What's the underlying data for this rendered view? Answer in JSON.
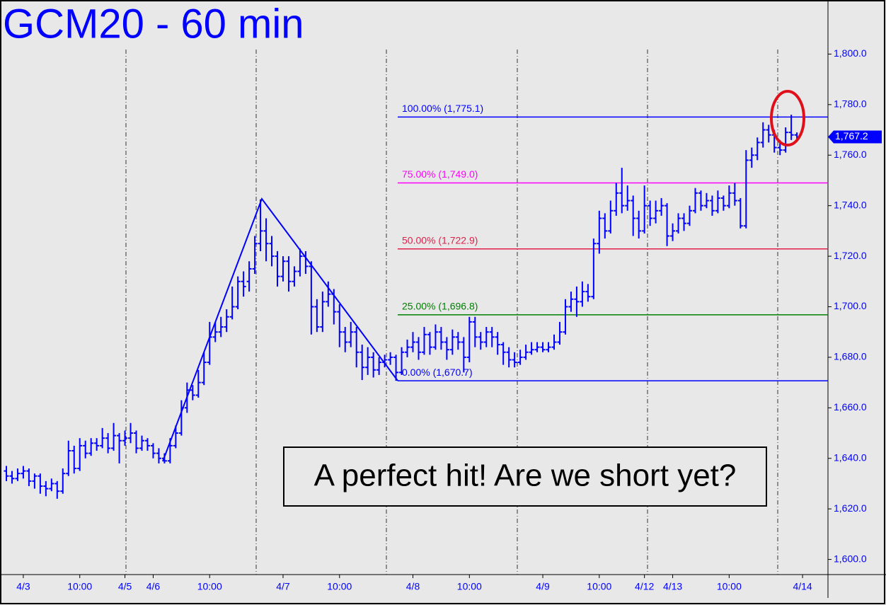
{
  "chart_data": {
    "type": "ohlc",
    "title": "GCM20 - 60 min",
    "color": "#0000ff",
    "categories": [
      null,
      null,
      null,
      "4/3",
      null,
      null,
      null,
      null,
      null,
      null,
      null,
      null,
      null,
      "10:00",
      null,
      null,
      null,
      null,
      null,
      null,
      null,
      "4/5",
      null,
      null,
      null,
      null,
      "4/6",
      null,
      null,
      null,
      null,
      null,
      null,
      null,
      null,
      null,
      "10:00",
      null,
      null,
      null,
      null,
      null,
      null,
      null,
      null,
      null,
      null,
      null,
      null,
      "4/7",
      null,
      null,
      null,
      null,
      null,
      null,
      null,
      null,
      null,
      "10:00",
      null,
      null,
      null,
      null,
      null,
      null,
      null,
      null,
      null,
      null,
      null,
      null,
      "4/8",
      null,
      null,
      null,
      null,
      null,
      null,
      null,
      null,
      null,
      "10:00",
      null,
      null,
      null,
      null,
      null,
      null,
      null,
      null,
      null,
      null,
      null,
      null,
      "4/9",
      null,
      null,
      null,
      null,
      null,
      null,
      null,
      null,
      null,
      "10:00",
      null,
      null,
      null,
      null,
      null,
      null,
      null,
      "4/12",
      null,
      null,
      null,
      null,
      "4/13",
      null,
      null,
      null,
      null,
      null,
      null,
      null,
      null,
      null,
      "10:00",
      null,
      null,
      null,
      null,
      null,
      null,
      null,
      null,
      null,
      null,
      null,
      null,
      "4/14",
      null,
      null,
      null,
      null
    ],
    "ohlc": [
      [
        1635,
        1637,
        1631,
        1633
      ],
      [
        1633,
        1635,
        1630,
        1632
      ],
      [
        1632,
        1636,
        1631,
        1634
      ],
      [
        1634,
        1637,
        1632,
        1635
      ],
      [
        1635,
        1636,
        1629,
        1631
      ],
      [
        1631,
        1634,
        1628,
        1633
      ],
      [
        1633,
        1634,
        1626,
        1629
      ],
      [
        1629,
        1631,
        1625,
        1628
      ],
      [
        1628,
        1632,
        1627,
        1630
      ],
      [
        1630,
        1631,
        1624,
        1627
      ],
      [
        1627,
        1636,
        1626,
        1634
      ],
      [
        1634,
        1647,
        1633,
        1643
      ],
      [
        1643,
        1645,
        1634,
        1636
      ],
      [
        1636,
        1648,
        1635,
        1645
      ],
      [
        1645,
        1647,
        1640,
        1642
      ],
      [
        1642,
        1648,
        1641,
        1646
      ],
      [
        1646,
        1648,
        1643,
        1645
      ],
      [
        1645,
        1652,
        1644,
        1648
      ],
      [
        1648,
        1650,
        1642,
        1644
      ],
      [
        1644,
        1654,
        1643,
        1649
      ],
      [
        1649,
        1650,
        1638,
        1647
      ],
      [
        1647,
        1651,
        1645,
        1648
      ],
      [
        1648,
        1654,
        1646,
        1650
      ],
      [
        1650,
        1651,
        1642,
        1644
      ],
      [
        1644,
        1649,
        1643,
        1647
      ],
      [
        1647,
        1648,
        1643,
        1645
      ],
      [
        1645,
        1646,
        1640,
        1642
      ],
      [
        1642,
        1644,
        1638,
        1640
      ],
      [
        1640,
        1642,
        1638,
        1639
      ],
      [
        1639,
        1648,
        1638,
        1645
      ],
      [
        1645,
        1653,
        1644,
        1650
      ],
      [
        1650,
        1663,
        1649,
        1660
      ],
      [
        1660,
        1670,
        1658,
        1667
      ],
      [
        1667,
        1669,
        1663,
        1665
      ],
      [
        1665,
        1675,
        1664,
        1670
      ],
      [
        1670,
        1682,
        1669,
        1678
      ],
      [
        1678,
        1694,
        1677,
        1688
      ],
      [
        1688,
        1694,
        1686,
        1690
      ],
      [
        1690,
        1696,
        1688,
        1692
      ],
      [
        1692,
        1699,
        1690,
        1696
      ],
      [
        1696,
        1708,
        1695,
        1700
      ],
      [
        1700,
        1712,
        1699,
        1710
      ],
      [
        1710,
        1714,
        1704,
        1708
      ],
      [
        1710,
        1718,
        1706,
        1715
      ],
      [
        1715,
        1728,
        1713,
        1725
      ],
      [
        1725,
        1742.5,
        1722,
        1730
      ],
      [
        1730,
        1735,
        1718,
        1725
      ],
      [
        1725,
        1728,
        1716,
        1720
      ],
      [
        1720,
        1722,
        1708,
        1712
      ],
      [
        1712,
        1720,
        1710,
        1718
      ],
      [
        1718,
        1720,
        1706,
        1710
      ],
      [
        1710,
        1716,
        1708,
        1714
      ],
      [
        1714,
        1723,
        1712,
        1720
      ],
      [
        1720,
        1722,
        1713,
        1716
      ],
      [
        1716,
        1718,
        1689,
        1700
      ],
      [
        1700,
        1703,
        1690,
        1692
      ],
      [
        1692,
        1706,
        1690,
        1702
      ],
      [
        1702,
        1710,
        1700,
        1705
      ],
      [
        1705,
        1707,
        1693,
        1698
      ],
      [
        1698,
        1701,
        1684,
        1690
      ],
      [
        1690,
        1692,
        1682,
        1686
      ],
      [
        1686,
        1694,
        1684,
        1690
      ],
      [
        1690,
        1692,
        1676,
        1682
      ],
      [
        1682,
        1685,
        1671,
        1676
      ],
      [
        1676,
        1684,
        1673,
        1680
      ],
      [
        1680,
        1682,
        1672,
        1675
      ],
      [
        1675,
        1680,
        1673,
        1678
      ],
      [
        1678,
        1681,
        1676,
        1679
      ],
      [
        1679,
        1682,
        1677,
        1680
      ],
      [
        1680,
        1681,
        1670.7,
        1674
      ],
      [
        1674,
        1684,
        1673,
        1682
      ],
      [
        1682,
        1687,
        1680,
        1684
      ],
      [
        1684,
        1690,
        1682,
        1686
      ],
      [
        1686,
        1688,
        1679,
        1682
      ],
      [
        1682,
        1692,
        1681,
        1689
      ],
      [
        1689,
        1690,
        1681,
        1684
      ],
      [
        1684,
        1693,
        1683,
        1690
      ],
      [
        1690,
        1692,
        1683,
        1686
      ],
      [
        1686,
        1688,
        1679,
        1683
      ],
      [
        1683,
        1691,
        1681,
        1688
      ],
      [
        1688,
        1690,
        1683,
        1686
      ],
      [
        1686,
        1688,
        1674,
        1680
      ],
      [
        1680,
        1696,
        1678,
        1694
      ],
      [
        1694,
        1696,
        1684,
        1688
      ],
      [
        1688,
        1690,
        1683,
        1686
      ],
      [
        1686,
        1692,
        1684,
        1690
      ],
      [
        1690,
        1692,
        1684,
        1688
      ],
      [
        1688,
        1690,
        1681,
        1685
      ],
      [
        1685,
        1686,
        1677,
        1682
      ],
      [
        1682,
        1684,
        1676,
        1679
      ],
      [
        1679,
        1682,
        1676,
        1678
      ],
      [
        1678,
        1683,
        1677,
        1680
      ],
      [
        1680,
        1685,
        1679,
        1682
      ],
      [
        1682,
        1686,
        1681,
        1683
      ],
      [
        1683,
        1686,
        1682,
        1684
      ],
      [
        1684,
        1686,
        1682,
        1683
      ],
      [
        1683,
        1686,
        1682,
        1684
      ],
      [
        1684,
        1689,
        1683,
        1686
      ],
      [
        1686,
        1694,
        1685,
        1690
      ],
      [
        1690,
        1703,
        1689,
        1700
      ],
      [
        1700,
        1706,
        1698,
        1703
      ],
      [
        1703,
        1708,
        1696,
        1702
      ],
      [
        1702,
        1710,
        1700,
        1706
      ],
      [
        1706,
        1709,
        1702,
        1704
      ],
      [
        1704,
        1727,
        1703,
        1725
      ],
      [
        1725,
        1738,
        1721,
        1735
      ],
      [
        1735,
        1737,
        1727,
        1730
      ],
      [
        1730,
        1742,
        1729,
        1738
      ],
      [
        1738,
        1749,
        1736,
        1745
      ],
      [
        1745,
        1755,
        1737,
        1740
      ],
      [
        1740,
        1748,
        1738,
        1742
      ],
      [
        1742,
        1744,
        1728,
        1735
      ],
      [
        1735,
        1738,
        1727,
        1730
      ],
      [
        1730,
        1748,
        1729,
        1740
      ],
      [
        1740,
        1742,
        1732,
        1735
      ],
      [
        1735,
        1742,
        1733,
        1738
      ],
      [
        1738,
        1743,
        1736,
        1740
      ],
      [
        1740,
        1741,
        1724,
        1728
      ],
      [
        1728,
        1733,
        1726,
        1730
      ],
      [
        1730,
        1737,
        1729,
        1735
      ],
      [
        1735,
        1737,
        1730,
        1733
      ],
      [
        1733,
        1740,
        1732,
        1738
      ],
      [
        1738,
        1747,
        1737,
        1745
      ],
      [
        1745,
        1746,
        1738,
        1740
      ],
      [
        1740,
        1745,
        1739,
        1742
      ],
      [
        1742,
        1744,
        1736,
        1738
      ],
      [
        1738,
        1746,
        1737,
        1743
      ],
      [
        1743,
        1744,
        1738,
        1740
      ],
      [
        1740,
        1748,
        1739,
        1745
      ],
      [
        1745,
        1749,
        1740,
        1742
      ],
      [
        1742,
        1743,
        1731,
        1732
      ],
      [
        1732,
        1762,
        1731,
        1758
      ],
      [
        1758,
        1763,
        1755,
        1760
      ],
      [
        1760,
        1767,
        1758,
        1765
      ],
      [
        1765,
        1773,
        1763,
        1770
      ],
      [
        1770,
        1772,
        1765,
        1768
      ],
      [
        1768,
        1770,
        1761,
        1763
      ],
      [
        1763,
        1766,
        1760,
        1762
      ],
      [
        1762,
        1771,
        1761,
        1769
      ],
      [
        1769,
        1776,
        1766,
        1768
      ],
      [
        1768,
        1769,
        1766,
        1767.2
      ],
      null,
      null,
      null,
      null,
      null
    ],
    "ylim": [
      1594,
      1820
    ],
    "yticks": [
      {
        "value": 1600,
        "label": "1,600.0"
      },
      {
        "value": 1620,
        "label": "1,620.0"
      },
      {
        "value": 1640,
        "label": "1,640.0"
      },
      {
        "value": 1660,
        "label": "1,660.0"
      },
      {
        "value": 1680,
        "label": "1,680.0"
      },
      {
        "value": 1700,
        "label": "1,700.0"
      },
      {
        "value": 1720,
        "label": "1,720.0"
      },
      {
        "value": 1740,
        "label": "1,740.0"
      },
      {
        "value": 1760,
        "label": "1,760.0"
      },
      {
        "value": 1780,
        "label": "1,780.0"
      },
      {
        "value": 1800,
        "label": "1,800.0"
      }
    ],
    "levels": [
      {
        "label": "100.00% (1,775.1)",
        "value": 1775.1,
        "color": "#0000ff"
      },
      {
        "label": "75.00% (1,749.0)",
        "value": 1749,
        "color": "#ff00ff"
      },
      {
        "label": "50.00% (1,722.9)",
        "value": 1722.9,
        "color": "#e0204a"
      },
      {
        "label": "25.00% (1,696.8)",
        "value": 1696.8,
        "color": "#008000"
      },
      {
        "label": "0.00% (1,670.7)",
        "value": 1670.7,
        "color": "#0000ff"
      }
    ],
    "last_price": {
      "value": 1767.2,
      "label": "1,767.2"
    },
    "annotation": "A perfect hit! Are we short yet?"
  }
}
